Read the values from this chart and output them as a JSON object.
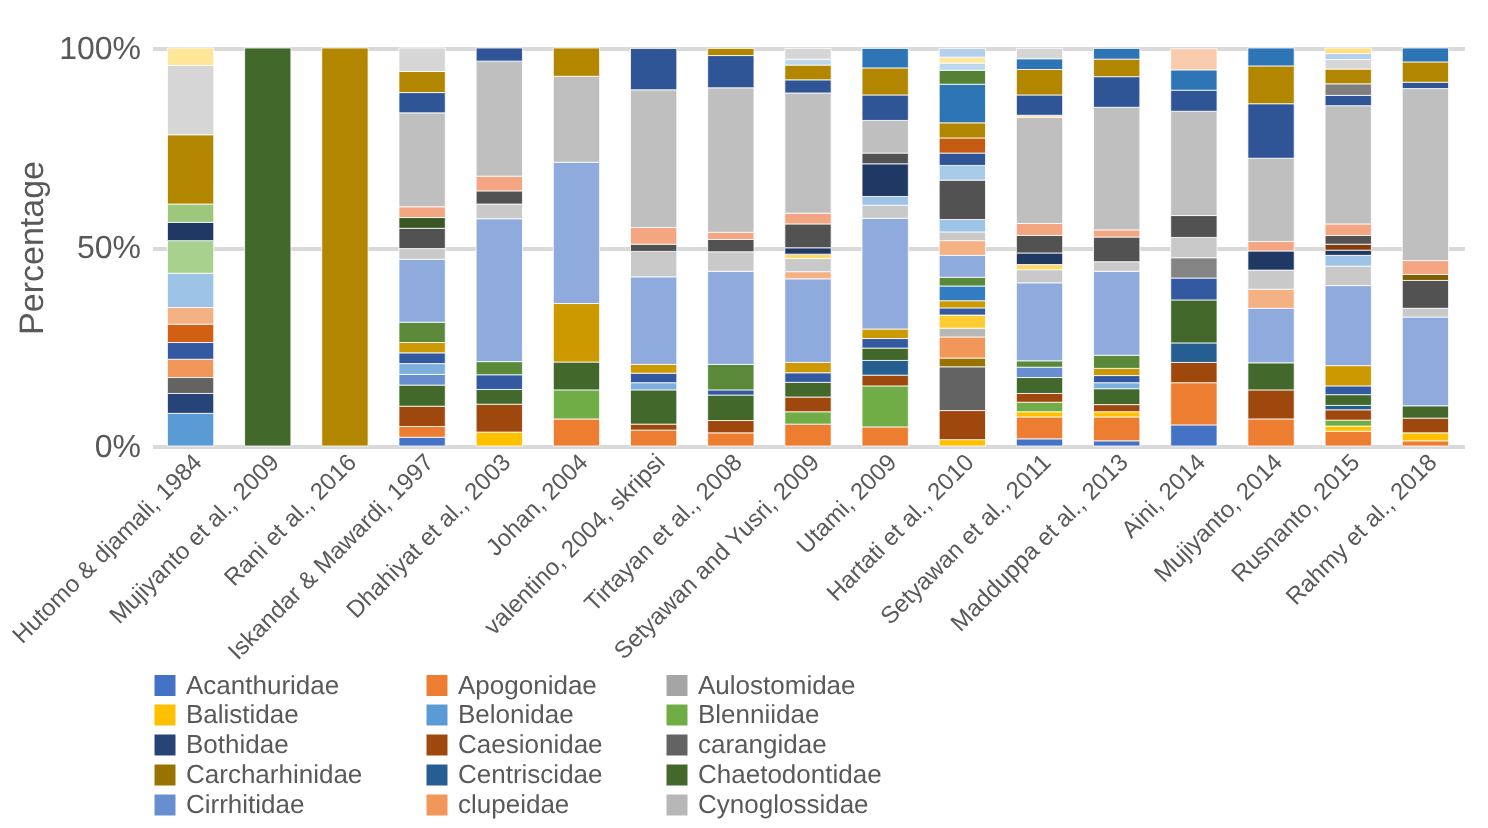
{
  "chart_data": {
    "type": "bar",
    "stacked": true,
    "ylabel": "Percentage",
    "grid": "y",
    "legend": "bottom",
    "categories": [
      "Hutomo & djamali, 1984",
      "Mujiyanto et al., 2009",
      "Rani et al., 2016",
      "Iskandar & Mawardi, 1997",
      "Dhahiyat et al., 2003",
      "Johan, 2004",
      "valentino, 2004, skripsi",
      "Tirtayan et al., 2008",
      "Setyawan and Yusri, 2009",
      "Utami, 2009",
      "Hartati et al., 2010",
      "Setyawan et al., 2011",
      "Madduppa et al., 2013",
      "Aini, 2014",
      "Mujiyanto, 2014",
      "Rusnanto, 2015",
      "Rahmy et al., 2018"
    ],
    "ylim": [
      0,
      100
    ],
    "yticks": [
      {
        "value": 0,
        "label": "0%"
      },
      {
        "value": 50,
        "label": "50%"
      },
      {
        "value": 100,
        "label": "100%"
      }
    ],
    "series": [
      {
        "name": "Acanthuridae",
        "color": "#4472c4",
        "values": [
          null,
          null,
          null,
          2.2,
          null,
          null,
          null,
          null,
          null,
          null,
          null,
          1.8,
          1.3,
          5.3,
          null,
          null,
          null
        ]
      },
      {
        "name": "Apogonidae",
        "color": "#ed7d31",
        "values": [
          null,
          null,
          null,
          2.7,
          null,
          6.8,
          4,
          3.3,
          5.5,
          4.8,
          null,
          5.5,
          6,
          10.6,
          6.8,
          3.7,
          1.3
        ]
      },
      {
        "name": "Aulostomidae",
        "color": "#a5a5a5",
        "values": [
          null,
          null,
          null,
          null,
          null,
          null,
          null,
          null,
          null,
          null,
          null,
          null,
          null,
          null,
          null,
          null,
          null
        ]
      },
      {
        "name": "Balistidae",
        "color": "#ffc000",
        "values": [
          null,
          null,
          null,
          null,
          3.5,
          null,
          null,
          null,
          null,
          null,
          1.6,
          1.3,
          1.3,
          null,
          null,
          1.3,
          2
        ]
      },
      {
        "name": "Belonidae",
        "color": "#5b9bd5",
        "values": [
          8.2,
          null,
          null,
          null,
          null,
          null,
          null,
          null,
          null,
          null,
          null,
          null,
          null,
          null,
          null,
          null,
          null
        ]
      },
      {
        "name": "Blenniidae",
        "color": "#70ad47",
        "values": [
          null,
          null,
          null,
          null,
          null,
          7.3,
          null,
          null,
          3.1,
          10.3,
          null,
          2.4,
          null,
          null,
          null,
          1.5,
          null
        ]
      },
      {
        "name": "Bothidae",
        "color": "#264478",
        "values": [
          5,
          null,
          null,
          null,
          null,
          null,
          null,
          null,
          null,
          null,
          null,
          null,
          null,
          null,
          null,
          null,
          null
        ]
      },
      {
        "name": "Caesionidae",
        "color": "#9e480e",
        "values": [
          null,
          null,
          null,
          5.1,
          7,
          null,
          1.5,
          3.1,
          3.7,
          2.7,
          7.3,
          2.2,
          1.8,
          5.1,
          7.3,
          2.6,
          3.7
        ]
      },
      {
        "name": "carangidae",
        "color": "#636363",
        "values": [
          4,
          null,
          null,
          null,
          null,
          null,
          null,
          null,
          null,
          null,
          11,
          null,
          null,
          null,
          null,
          null,
          null
        ]
      },
      {
        "name": "Carcharhinidae",
        "color": "#997300",
        "values": [
          null,
          null,
          null,
          null,
          null,
          null,
          null,
          null,
          null,
          null,
          2.2,
          null,
          null,
          null,
          null,
          null,
          null
        ]
      },
      {
        "name": "Centriscidae",
        "color": "#255e91",
        "values": [
          null,
          null,
          null,
          null,
          null,
          null,
          null,
          null,
          null,
          3.7,
          null,
          null,
          null,
          4.9,
          null,
          1.1,
          null
        ]
      },
      {
        "name": "Chaetodontidae",
        "color": "#43682b",
        "values": [
          null,
          100,
          null,
          5.3,
          3.7,
          7,
          8.6,
          6.4,
          3.7,
          3.1,
          null,
          4,
          4,
          10.8,
          6.8,
          2.7,
          3.1
        ]
      },
      {
        "name": "Cirrhitidae",
        "color": "#698ed0",
        "values": [
          null,
          null,
          null,
          2.7,
          null,
          null,
          null,
          null,
          null,
          null,
          null,
          2.6,
          null,
          null,
          null,
          null,
          null
        ]
      },
      {
        "name": "clupeidae",
        "color": "#f1975a",
        "values": [
          4.6,
          null,
          null,
          null,
          null,
          null,
          null,
          null,
          null,
          null,
          5.3,
          null,
          null,
          null,
          null,
          null,
          null
        ]
      },
      {
        "name": "Cynoglossidae",
        "color": "#b7b7b7",
        "values": [
          null,
          null,
          null,
          null,
          null,
          null,
          null,
          null,
          null,
          null,
          2.2,
          null,
          null,
          null,
          null,
          null,
          null
        ]
      },
      {
        "color": "#ffcd33",
        "values": [
          null,
          null,
          null,
          null,
          null,
          null,
          null,
          null,
          null,
          null,
          3.3,
          null,
          null,
          null,
          null,
          null,
          null
        ]
      },
      {
        "color": "#7cafdd",
        "values": [
          null,
          null,
          null,
          2.7,
          null,
          null,
          1.8,
          null,
          null,
          null,
          null,
          null,
          1.5,
          null,
          null,
          null,
          null
        ]
      },
      {
        "color": "#335aa1",
        "values": [
          4.2,
          null,
          null,
          2.7,
          3.7,
          null,
          2.4,
          1.3,
          2.4,
          2.4,
          1.8,
          null,
          1.8,
          5.5,
          null,
          2.2,
          null
        ]
      },
      {
        "color": "#d26012",
        "values": [
          4.6,
          null,
          null,
          null,
          null,
          null,
          null,
          null,
          null,
          null,
          null,
          null,
          null,
          null,
          null,
          null,
          null
        ]
      },
      {
        "color": "#848484",
        "values": [
          null,
          null,
          null,
          null,
          null,
          null,
          null,
          null,
          null,
          null,
          null,
          null,
          null,
          5.1,
          null,
          null,
          null
        ]
      },
      {
        "color": "#cc9a00",
        "values": [
          null,
          null,
          null,
          2.6,
          null,
          14.7,
          2.2,
          null,
          2.6,
          2.4,
          1.8,
          null,
          1.8,
          null,
          null,
          5.1,
          null
        ]
      },
      {
        "color": "#327dc2",
        "values": [
          null,
          null,
          null,
          null,
          null,
          null,
          null,
          null,
          null,
          null,
          3.7,
          null,
          null,
          null,
          null,
          null,
          null
        ]
      },
      {
        "color": "#5a8a39",
        "values": [
          null,
          null,
          null,
          5.1,
          3.3,
          null,
          null,
          6.4,
          null,
          null,
          2.2,
          1.6,
          3.3,
          null,
          null,
          null,
          null
        ]
      },
      {
        "color": "#8faadc",
        "values": [
          null,
          null,
          null,
          15.8,
          35.9,
          35.5,
          22,
          23.4,
          21,
          27.8,
          5.5,
          19.6,
          21.1,
          null,
          13.7,
          20.1,
          22.3
        ]
      },
      {
        "color": "#f4b183",
        "values": [
          4.2,
          null,
          null,
          null,
          null,
          null,
          null,
          null,
          1.8,
          null,
          3.7,
          null,
          null,
          null,
          4.8,
          null,
          null
        ]
      },
      {
        "color": "#c9c9c9",
        "values": [
          null,
          null,
          null,
          2.7,
          3.7,
          null,
          6.4,
          4.9,
          3.3,
          3.3,
          2.2,
          3.3,
          2.4,
          5.1,
          4.8,
          4.9,
          2.2
        ]
      },
      {
        "color": "#ffd966",
        "values": [
          null,
          null,
          null,
          null,
          null,
          null,
          null,
          null,
          1.1,
          null,
          null,
          1.3,
          null,
          null,
          null,
          null,
          null
        ]
      },
      {
        "color": "#9dc3e6",
        "values": [
          8.6,
          null,
          null,
          null,
          null,
          null,
          null,
          null,
          null,
          2.2,
          3.1,
          null,
          null,
          null,
          null,
          2.7,
          null
        ]
      },
      {
        "color": "#a9d18e",
        "values": [
          8.2,
          null,
          null,
          null,
          null,
          null,
          null,
          null,
          null,
          null,
          null,
          null,
          null,
          null,
          null,
          null,
          null
        ]
      },
      {
        "color": "#203864",
        "values": [
          4.6,
          null,
          null,
          null,
          null,
          null,
          null,
          null,
          1.6,
          8.2,
          null,
          2.9,
          null,
          null,
          4.8,
          1.3,
          null
        ]
      },
      {
        "color": "#843c0c",
        "values": [
          null,
          null,
          null,
          null,
          null,
          null,
          null,
          null,
          null,
          null,
          null,
          null,
          null,
          null,
          null,
          1.5,
          null
        ]
      },
      {
        "color": "#525252",
        "values": [
          null,
          null,
          null,
          5.1,
          3.3,
          null,
          1.8,
          3.1,
          6,
          2.7,
          9.9,
          4.4,
          6.2,
          5.5,
          null,
          2.2,
          7
        ]
      },
      {
        "color": "#7f6000",
        "values": [
          null,
          null,
          null,
          null,
          null,
          null,
          null,
          null,
          null,
          null,
          null,
          null,
          null,
          null,
          null,
          null,
          1.5
        ]
      },
      {
        "color": "#385723",
        "values": [
          null,
          null,
          null,
          2.7,
          null,
          null,
          null,
          null,
          null,
          null,
          null,
          null,
          null,
          null,
          null,
          null,
          null
        ]
      },
      {
        "color": "#f4a582",
        "values": [
          null,
          null,
          null,
          2.7,
          3.7,
          null,
          4.2,
          1.8,
          2.7,
          null,
          null,
          3,
          1.8,
          null,
          2.4,
          2.9,
          3.5
        ]
      },
      {
        "color": "#bfbfbf",
        "values": [
          null,
          null,
          null,
          23.6,
          28.9,
          21.6,
          34.6,
          36.3,
          30.2,
          8.2,
          null,
          26.7,
          30.8,
          26.2,
          20.9,
          29.7,
          43.2
        ]
      },
      {
        "color": "#ffe08a",
        "values": [
          null,
          null,
          null,
          null,
          null,
          null,
          null,
          null,
          null,
          null,
          null,
          0.5,
          null,
          null,
          null,
          null,
          null
        ]
      },
      {
        "color": "#a9cbea",
        "values": [
          null,
          null,
          null,
          null,
          null,
          null,
          null,
          null,
          null,
          null,
          3.7,
          null,
          null,
          null,
          null,
          null,
          null
        ]
      },
      {
        "color": "#9dc77a",
        "values": [
          4.6,
          null,
          null,
          null,
          null,
          null,
          null,
          null,
          null,
          null,
          null,
          null,
          null,
          null,
          null,
          null,
          null
        ]
      },
      {
        "color": "#2f5597",
        "values": [
          null,
          null,
          null,
          5.1,
          3.3,
          null,
          10.4,
          8.1,
          3.3,
          6.4,
          3.1,
          5.1,
          7.7,
          5.3,
          13.7,
          2.6,
          1.6
        ]
      },
      {
        "color": "#c55a11",
        "values": [
          null,
          null,
          null,
          null,
          null,
          null,
          null,
          null,
          null,
          null,
          3.8,
          null,
          null,
          null,
          null,
          null,
          null
        ]
      },
      {
        "color": "#7f7f7f",
        "values": [
          null,
          null,
          null,
          null,
          null,
          null,
          null,
          null,
          null,
          null,
          null,
          null,
          null,
          null,
          null,
          2.9,
          null
        ]
      },
      {
        "color": "#b38600",
        "values": [
          17.4,
          null,
          100,
          5.3,
          null,
          7.1,
          null,
          1.8,
          3.7,
          6.8,
          3.8,
          6.4,
          4.4,
          null,
          9.5,
          3.7,
          5.1
        ]
      },
      {
        "color": "#2e75b6",
        "values": [
          null,
          null,
          null,
          null,
          null,
          null,
          null,
          null,
          null,
          4.9,
          9.7,
          2.7,
          2.7,
          5.1,
          4.5,
          null,
          3.5
        ]
      },
      {
        "color": "#548235",
        "values": [
          null,
          null,
          null,
          null,
          null,
          null,
          null,
          null,
          null,
          null,
          3.5,
          null,
          null,
          null,
          null,
          null,
          null
        ]
      },
      {
        "color": "#bdd7ee",
        "values": [
          null,
          null,
          null,
          null,
          null,
          null,
          null,
          null,
          1.5,
          null,
          1.8,
          null,
          null,
          null,
          null,
          null,
          null
        ]
      },
      {
        "color": "#f8cbad",
        "values": [
          null,
          null,
          null,
          null,
          null,
          null,
          null,
          null,
          null,
          null,
          null,
          null,
          null,
          5.3,
          null,
          null,
          null
        ]
      },
      {
        "color": "#d6d6d6",
        "values": [
          17.4,
          null,
          null,
          5.9,
          null,
          null,
          null,
          null,
          2.7,
          null,
          null,
          2.6,
          null,
          null,
          null,
          2.4,
          null
        ]
      },
      {
        "color": "#ffe699",
        "values": [
          4.4,
          null,
          null,
          null,
          null,
          null,
          null,
          null,
          null,
          null,
          1.5,
          null,
          null,
          null,
          null,
          null,
          null
        ]
      },
      {
        "color": "#b4d0ee",
        "values": [
          null,
          null,
          null,
          null,
          null,
          null,
          null,
          null,
          null,
          null,
          2.2,
          null,
          null,
          null,
          null,
          1.5,
          null
        ]
      },
      {
        "color": "#ffdf80",
        "values": [
          null,
          null,
          null,
          null,
          null,
          null,
          null,
          null,
          null,
          null,
          null,
          null,
          null,
          null,
          null,
          1.4,
          null
        ]
      }
    ]
  }
}
